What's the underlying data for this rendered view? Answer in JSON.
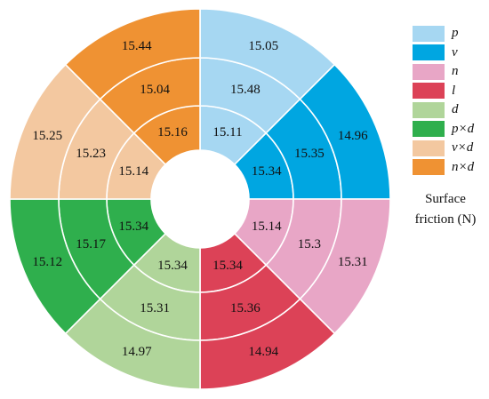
{
  "chart_data": {
    "type": "sunburst",
    "caption_line1": "Surface",
    "caption_line2": "friction (N)",
    "legend": [
      {
        "label": "p",
        "color": "#a6d7f2"
      },
      {
        "label": "v",
        "color": "#00a6e1"
      },
      {
        "label": "n",
        "color": "#e8a6c6"
      },
      {
        "label": "l",
        "color": "#dc4257"
      },
      {
        "label": "d",
        "color": "#b0d59a"
      },
      {
        "label": "p×d",
        "color": "#2faf4d"
      },
      {
        "label": "v×d",
        "color": "#f3c8a0"
      },
      {
        "label": "n×d",
        "color": "#ef9233"
      }
    ],
    "rings": [
      {
        "name": "inner",
        "sectors": [
          {
            "factor": "p",
            "value": "15.11"
          },
          {
            "factor": "v",
            "value": "15.34"
          },
          {
            "factor": "n",
            "value": "15.14"
          },
          {
            "factor": "l",
            "value": "15.34"
          },
          {
            "factor": "d",
            "value": "15.34"
          },
          {
            "factor": "p×d",
            "value": "15.34"
          },
          {
            "factor": "v×d",
            "value": "15.14"
          },
          {
            "factor": "n×d",
            "value": "15.16"
          }
        ]
      },
      {
        "name": "middle",
        "sectors": [
          {
            "factor": "p",
            "value": "15.48"
          },
          {
            "factor": "v",
            "value": "15.35"
          },
          {
            "factor": "n",
            "value": "15.3"
          },
          {
            "factor": "l",
            "value": "15.36"
          },
          {
            "factor": "d",
            "value": "15.31"
          },
          {
            "factor": "p×d",
            "value": "15.17"
          },
          {
            "factor": "v×d",
            "value": "15.23"
          },
          {
            "factor": "n×d",
            "value": "15.04"
          }
        ]
      },
      {
        "name": "outer",
        "sectors": [
          {
            "factor": "p",
            "value": "15.05"
          },
          {
            "factor": "v",
            "value": "14.96"
          },
          {
            "factor": "n",
            "value": "15.31"
          },
          {
            "factor": "l",
            "value": "14.94"
          },
          {
            "factor": "d",
            "value": "14.97"
          },
          {
            "factor": "p×d",
            "value": "15.12"
          },
          {
            "factor": "v×d",
            "value": "15.25"
          },
          {
            "factor": "n×d",
            "value": "15.44"
          }
        ]
      }
    ]
  }
}
